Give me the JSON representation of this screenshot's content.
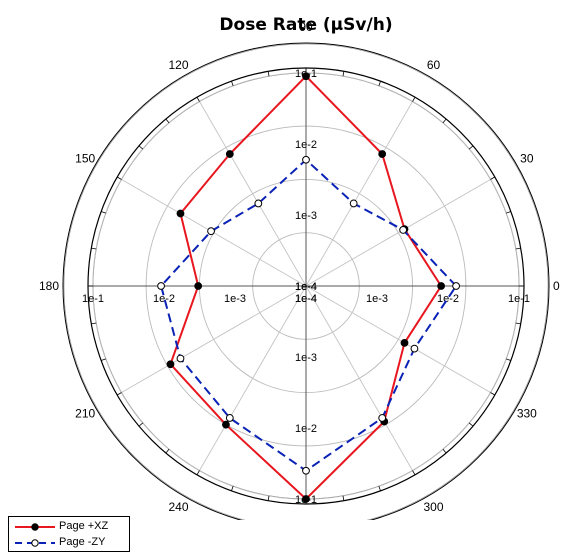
{
  "chart_data": {
    "type": "polar",
    "title": "Dose Rate (µSv/h)",
    "r_scale": "log",
    "r_range": [
      0.0001,
      0.1
    ],
    "r_ticks": [
      "1e-4",
      "1e-3",
      "1e-2",
      "1e-1"
    ],
    "r_tick_values": [
      0.0001,
      0.001,
      0.01,
      0.1
    ],
    "angle_labels": [
      "0",
      "30",
      "60",
      "90",
      "120",
      "150",
      "180",
      "210",
      "240",
      "270",
      "300",
      "330"
    ],
    "angles": [
      0,
      30,
      60,
      90,
      120,
      150,
      180,
      210,
      240,
      270,
      300,
      330
    ],
    "grid": true,
    "legend_position": "bottom-left",
    "series": [
      {
        "name": "Page +XZ",
        "color": "#e8161e",
        "marker": "filled-circle",
        "line": "solid",
        "values": [
          0.008,
          0.004,
          0.014,
          0.09,
          0.014,
          0.011,
          0.0033,
          0.016,
          0.018,
          0.1,
          0.016,
          0.004
        ]
      },
      {
        "name": "Page -ZY",
        "color": "#0a22b5",
        "marker": "open-circle",
        "line": "dashed",
        "values": [
          0.013,
          0.0038,
          0.0022,
          0.006,
          0.0022,
          0.0035,
          0.011,
          0.011,
          0.014,
          0.04,
          0.014,
          0.0058
        ]
      }
    ]
  }
}
